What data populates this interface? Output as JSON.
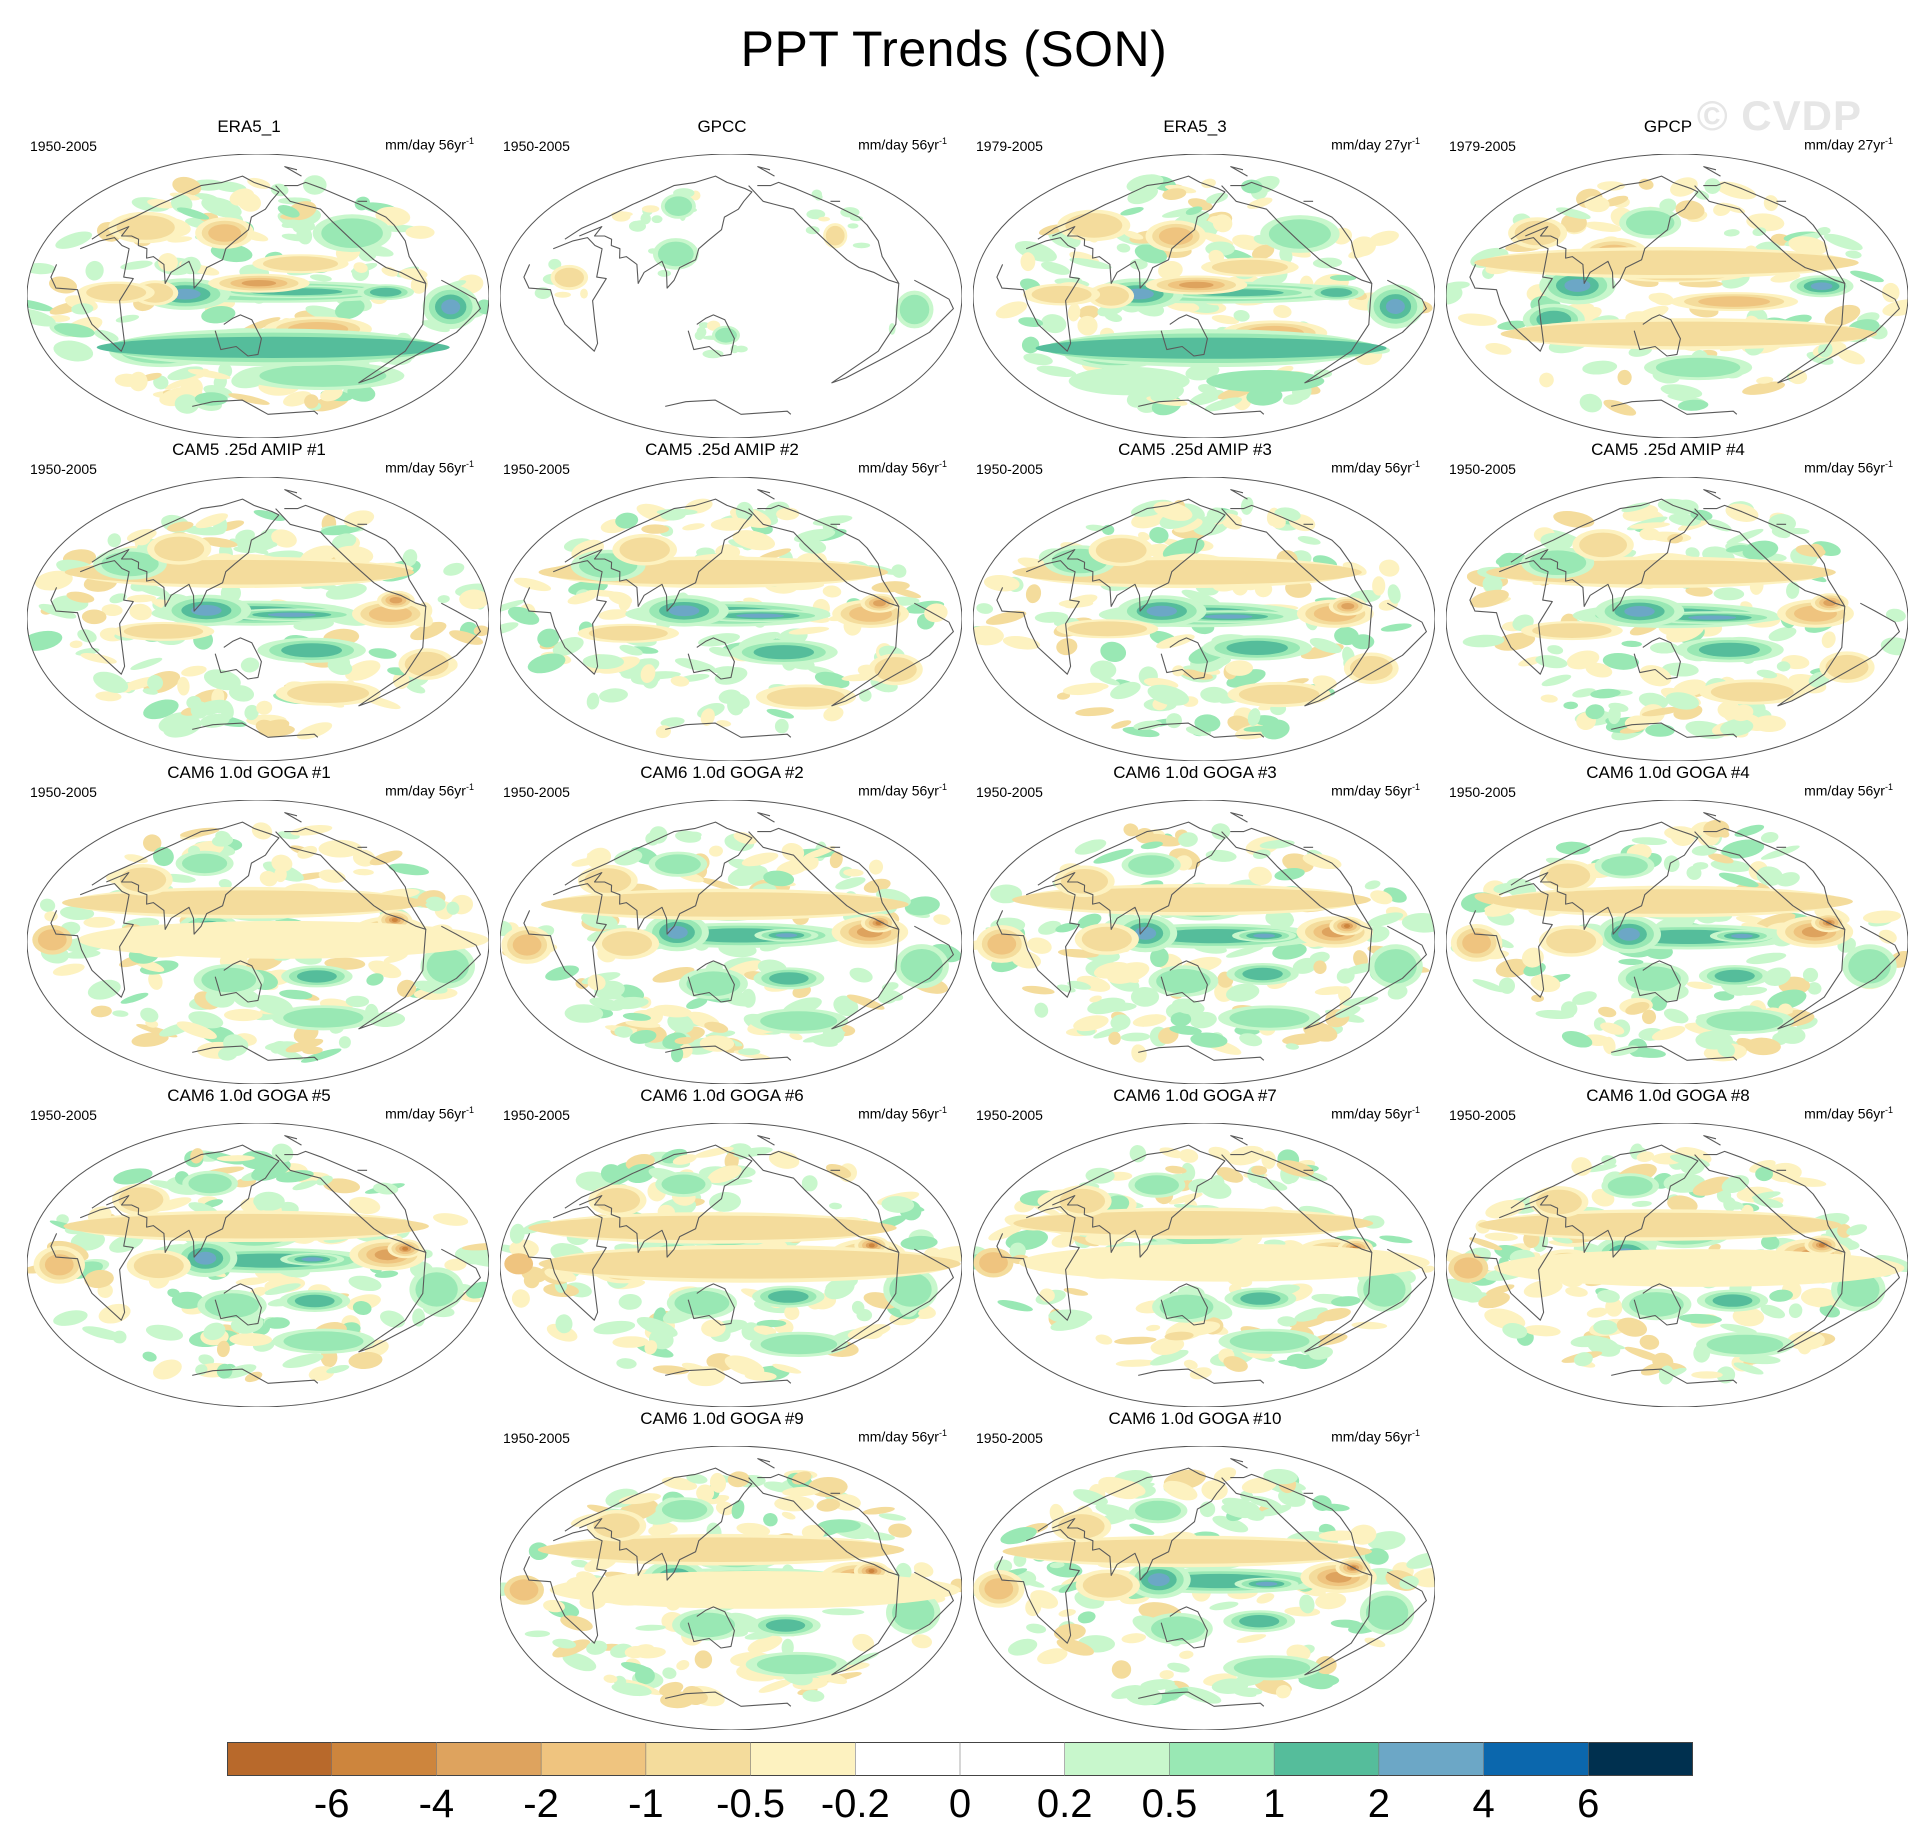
{
  "figure": {
    "title": "PPT Trends (SON)",
    "watermark": "© CVDP"
  },
  "panels": [
    {
      "title": "ERA5_1",
      "years": "1950-2005",
      "units": "mm/day 56yr",
      "pattern": "era5",
      "style": 0
    },
    {
      "title": "GPCC",
      "years": "1950-2005",
      "units": "mm/day 56yr",
      "pattern": "gpcc",
      "style": 0
    },
    {
      "title": "ERA5_3",
      "years": "1979-2005",
      "units": "mm/day 27yr",
      "pattern": "era5",
      "style": 1
    },
    {
      "title": "GPCP",
      "years": "1979-2005",
      "units": "mm/day 27yr",
      "pattern": "gpcp",
      "style": 0
    },
    {
      "title": "CAM5 .25d AMIP #1",
      "years": "1950-2005",
      "units": "mm/day 56yr",
      "pattern": "cam5",
      "style": 0
    },
    {
      "title": "CAM5 .25d AMIP #2",
      "years": "1950-2005",
      "units": "mm/day 56yr",
      "pattern": "cam5",
      "style": 1
    },
    {
      "title": "CAM5 .25d AMIP #3",
      "years": "1950-2005",
      "units": "mm/day 56yr",
      "pattern": "cam5",
      "style": 2
    },
    {
      "title": "CAM5 .25d AMIP #4",
      "years": "1950-2005",
      "units": "mm/day 56yr",
      "pattern": "cam5",
      "style": 3
    },
    {
      "title": "CAM6 1.0d GOGA #1",
      "years": "1950-2005",
      "units": "mm/day 56yr",
      "pattern": "cam6",
      "style": 0
    },
    {
      "title": "CAM6 1.0d GOGA #2",
      "years": "1950-2005",
      "units": "mm/day 56yr",
      "pattern": "cam6",
      "style": 1
    },
    {
      "title": "CAM6 1.0d GOGA #3",
      "years": "1950-2005",
      "units": "mm/day 56yr",
      "pattern": "cam6",
      "style": 2
    },
    {
      "title": "CAM6 1.0d GOGA #4",
      "years": "1950-2005",
      "units": "mm/day 56yr",
      "pattern": "cam6",
      "style": 3
    },
    {
      "title": "CAM6 1.0d GOGA #5",
      "years": "1950-2005",
      "units": "mm/day 56yr",
      "pattern": "cam6",
      "style": 4
    },
    {
      "title": "CAM6 1.0d GOGA #6",
      "years": "1950-2005",
      "units": "mm/day 56yr",
      "pattern": "cam6",
      "style": 5
    },
    {
      "title": "CAM6 1.0d GOGA #7",
      "years": "1950-2005",
      "units": "mm/day 56yr",
      "pattern": "cam6",
      "style": 6
    },
    {
      "title": "CAM6 1.0d GOGA #8",
      "years": "1950-2005",
      "units": "mm/day 56yr",
      "pattern": "cam6",
      "style": 7
    },
    {
      "title": "CAM6 1.0d GOGA #9",
      "years": "1950-2005",
      "units": "mm/day 56yr",
      "pattern": "cam6",
      "style": 8
    },
    {
      "title": "CAM6 1.0d GOGA #10",
      "years": "1950-2005",
      "units": "mm/day 56yr",
      "pattern": "cam6",
      "style": 9
    }
  ],
  "colorbar": {
    "labels": [
      "-6",
      "-4",
      "-2",
      "-1",
      "-0.5",
      "-0.2",
      "0",
      "0.2",
      "0.5",
      "1",
      "2",
      "4",
      "6"
    ],
    "colors": [
      "#b8692b",
      "#cd853d",
      "#dea35e",
      "#efc47f",
      "#f4dc9c",
      "#fdf2c0",
      "#ffffff",
      "#ffffff",
      "#c8f7cc",
      "#99e8b4",
      "#55bd9b",
      "#6ca7c6",
      "#0b67ad",
      "#00304f"
    ]
  }
}
